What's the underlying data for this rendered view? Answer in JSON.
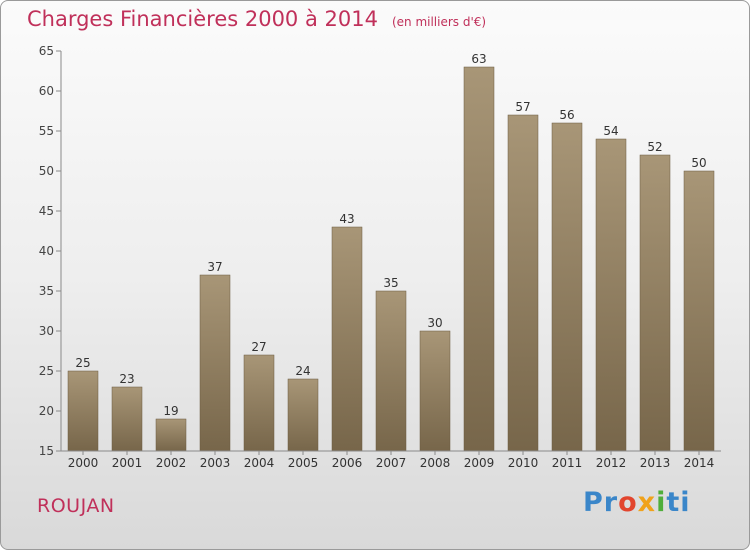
{
  "chart_data": {
    "type": "bar",
    "title": "Charges Financières 2000 à 2014",
    "subtitle": "(en milliers d'€)",
    "categories": [
      "2000",
      "2001",
      "2002",
      "2003",
      "2004",
      "2005",
      "2006",
      "2007",
      "2008",
      "2009",
      "2010",
      "2011",
      "2012",
      "2013",
      "2014"
    ],
    "values": [
      25,
      23,
      19,
      37,
      27,
      24,
      43,
      35,
      30,
      63,
      57,
      56,
      54,
      52,
      50
    ],
    "ylim": [
      15,
      65
    ],
    "yticks": [
      15,
      20,
      25,
      30,
      35,
      40,
      45,
      50,
      55,
      60,
      65
    ],
    "grid": false,
    "bar_color_top": "#a89677",
    "bar_color_bottom": "#77664a"
  },
  "location": "ROUJAN",
  "logo": {
    "parts": [
      "Pr",
      "o",
      "x",
      "i",
      "ti"
    ]
  },
  "colors": {
    "accent": "#c0305a"
  }
}
